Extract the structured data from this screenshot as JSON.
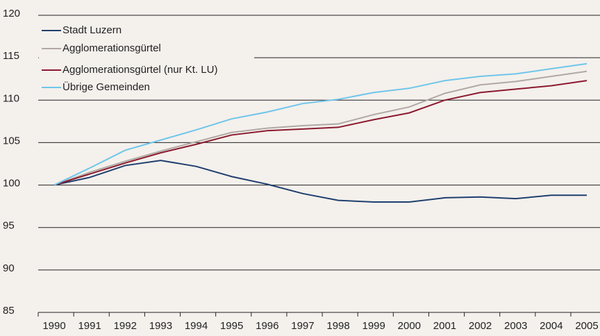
{
  "chart_data": {
    "type": "line",
    "categories": [
      "1990",
      "1991",
      "1992",
      "1993",
      "1994",
      "1995",
      "1996",
      "1997",
      "1998",
      "1999",
      "2000",
      "2001",
      "2002",
      "2003",
      "2004",
      "2005"
    ],
    "series": [
      {
        "name": "Stadt Luzern",
        "color": "#1f3f6e",
        "values": [
          100,
          100.9,
          102.3,
          102.9,
          102.2,
          101.0,
          100.1,
          99.0,
          98.2,
          98.0,
          98.0,
          98.5,
          98.6,
          98.4,
          98.8,
          98.8
        ]
      },
      {
        "name": "Agglomerationsgürtel",
        "color": "#b0a8a4",
        "values": [
          100,
          101.5,
          102.8,
          104.0,
          105.1,
          106.2,
          106.7,
          107.0,
          107.2,
          108.3,
          109.2,
          110.8,
          111.8,
          112.2,
          112.8,
          113.4
        ]
      },
      {
        "name": "Agglomerationsgürtel (nur Kt. LU)",
        "color": "#8b1a2e",
        "values": [
          100,
          101.3,
          102.6,
          103.8,
          104.8,
          105.9,
          106.4,
          106.6,
          106.8,
          107.7,
          108.5,
          110.0,
          110.9,
          111.3,
          111.7,
          112.3
        ]
      },
      {
        "name": "Übrige Gemeinden",
        "color": "#6ec6ea",
        "values": [
          100,
          102.0,
          104.1,
          105.3,
          106.5,
          107.8,
          108.6,
          109.6,
          110.1,
          110.9,
          111.4,
          112.3,
          112.8,
          113.1,
          113.7,
          114.3
        ]
      }
    ],
    "ylim": [
      85,
      120
    ],
    "yticks": [
      85,
      90,
      95,
      100,
      105,
      110,
      115,
      120
    ],
    "grid": true,
    "legend": "top-left"
  }
}
